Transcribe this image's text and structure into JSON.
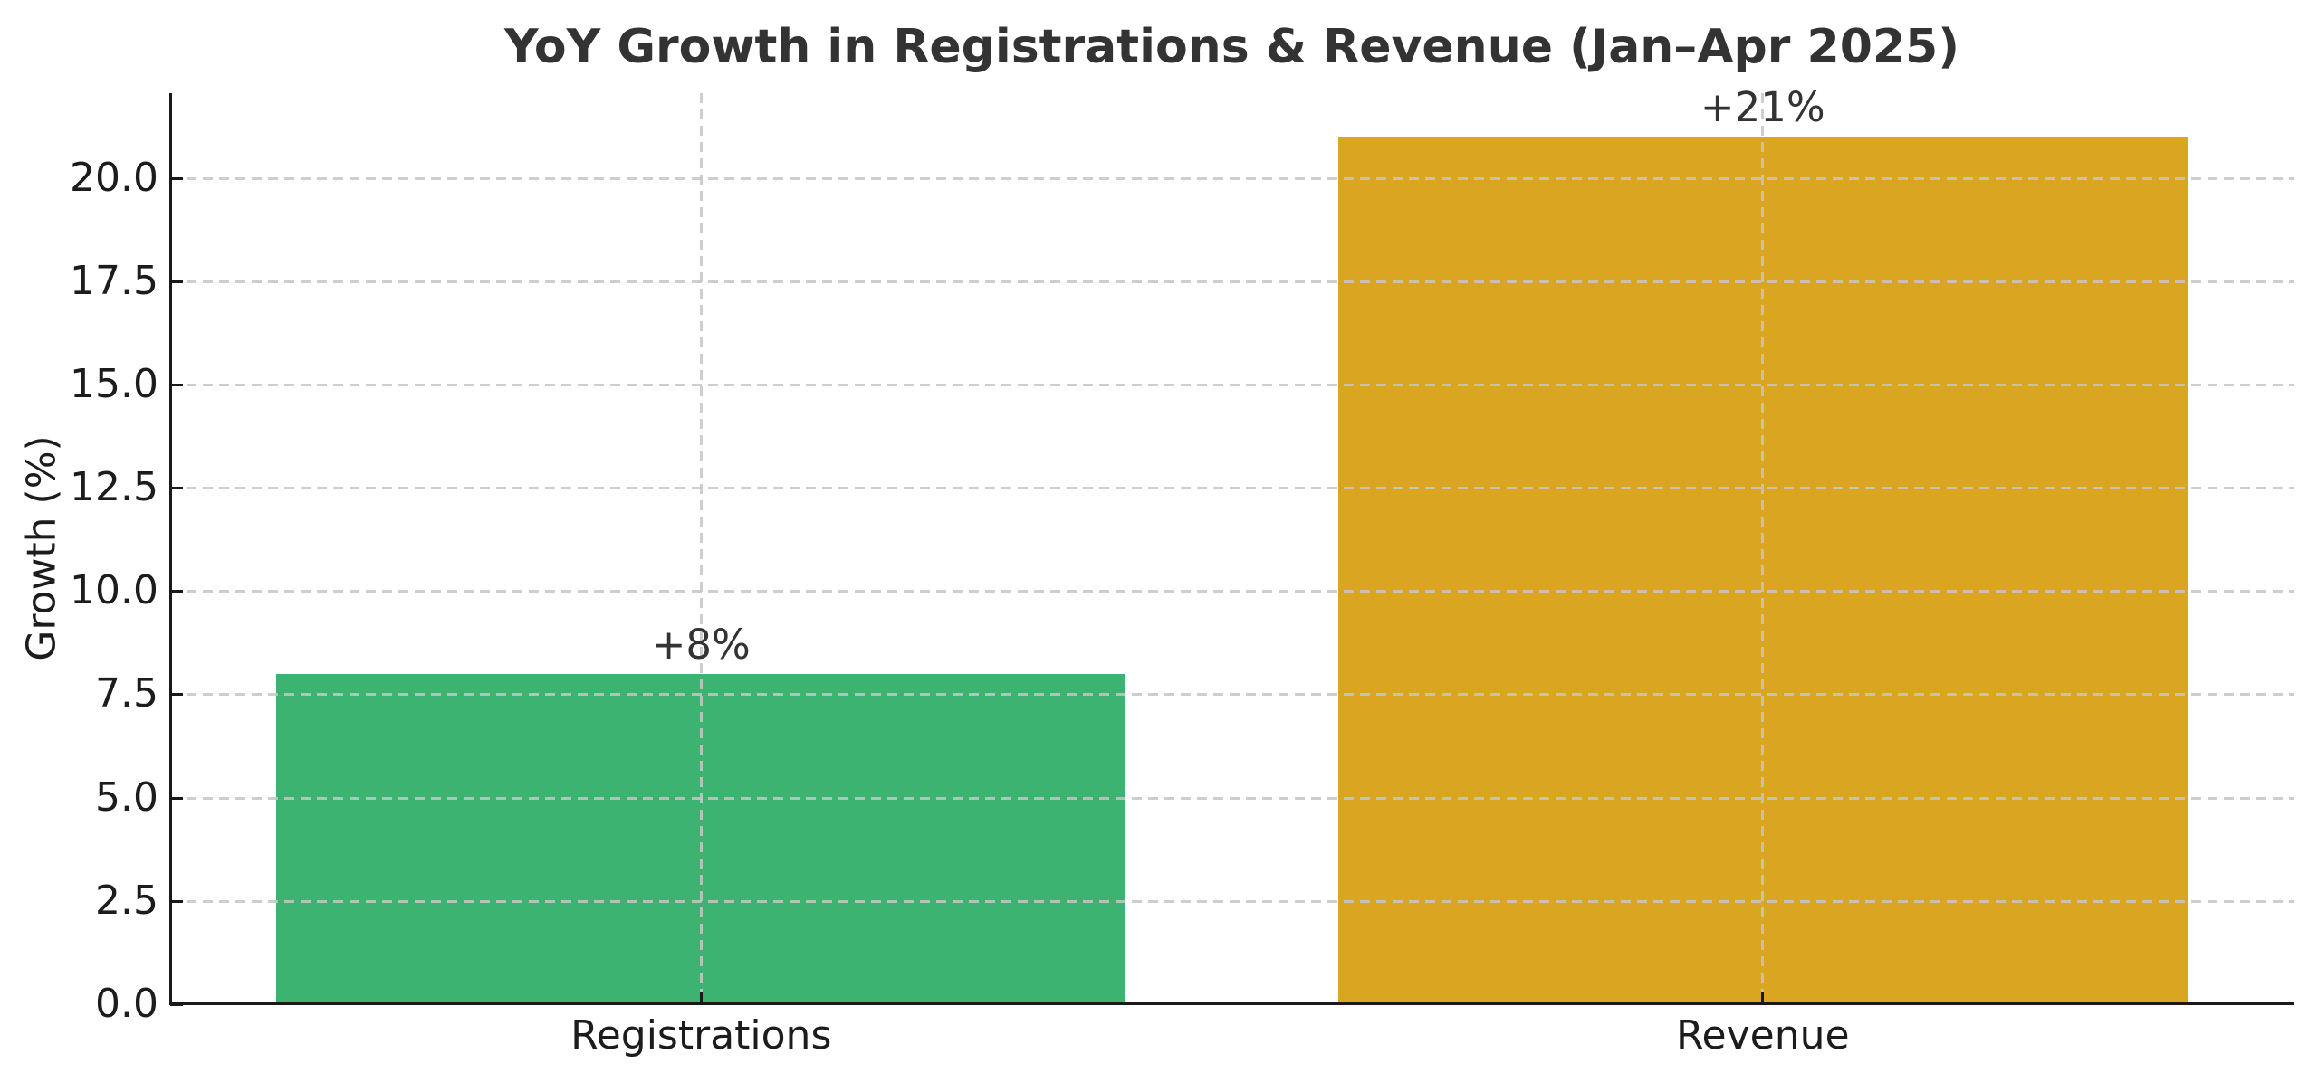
{
  "chart_data": {
    "type": "bar",
    "title": "YoY Growth in Registrations & Revenue (Jan–Apr 2025)",
    "categories": [
      "Registrations",
      "Revenue"
    ],
    "values": [
      8,
      21
    ],
    "bar_labels": [
      "+8%",
      "+21%"
    ],
    "bar_colors": [
      "#3cb371",
      "#daa520"
    ],
    "xlabel": "",
    "ylabel": "Growth (%)",
    "ylim": [
      0,
      22.05
    ],
    "ytick_values": [
      0,
      2.5,
      5,
      7.5,
      10,
      12.5,
      15,
      17.5,
      20
    ],
    "ytick_labels": [
      "0.0",
      "2.5",
      "5.0",
      "7.5",
      "10.0",
      "12.5",
      "15.0",
      "17.5",
      "20.0"
    ],
    "bar_width_fraction": 0.8,
    "grid": {
      "style": "dashed",
      "axes": "both",
      "color": "#c6c6c6",
      "drawn_above_bars": true
    },
    "legend_position": "none",
    "colors": {
      "spine": "#1a1a1a",
      "title": "#333333",
      "tick_label": "#1c1c1c",
      "annotation": "#333333",
      "background": "#ffffff"
    }
  }
}
